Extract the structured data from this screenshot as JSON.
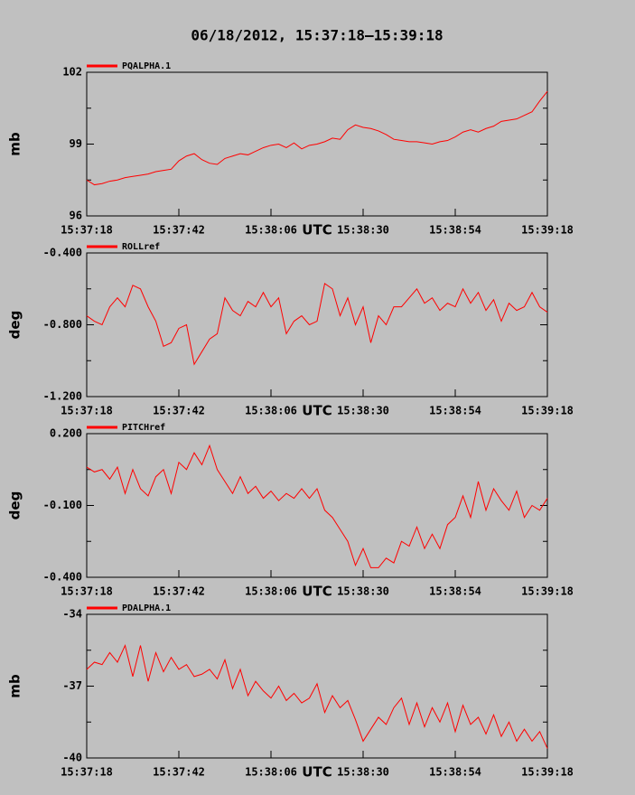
{
  "title": "06/18/2012, 15:37:18–15:39:18",
  "chart_data": [
    {
      "type": "line",
      "ylabel": "mb",
      "xlabel": "UTC",
      "x": [
        0,
        2,
        4,
        6,
        8,
        10,
        12,
        14,
        16,
        18,
        20,
        22,
        24,
        26,
        28,
        30,
        32,
        34,
        36,
        38,
        40,
        42,
        44,
        46,
        48,
        50,
        52,
        54,
        56,
        58,
        60,
        62,
        64,
        66,
        68,
        70,
        72,
        74,
        76,
        78,
        80,
        82,
        84,
        86,
        88,
        90,
        92,
        94,
        96,
        98,
        100,
        102,
        104,
        106,
        108,
        110,
        112,
        114,
        116,
        118,
        120
      ],
      "xlim": [
        0,
        120
      ],
      "xticks": [
        {
          "value": 0,
          "label": "15:37:18"
        },
        {
          "value": 24,
          "label": "15:37:42"
        },
        {
          "value": 48,
          "label": "15:38:06"
        },
        {
          "value": 72,
          "label": "15:38:30"
        },
        {
          "value": 96,
          "label": "15:38:54"
        },
        {
          "value": 120,
          "label": "15:39:18"
        }
      ],
      "ylim": [
        96,
        102
      ],
      "yticks": [
        96,
        99,
        102
      ],
      "yminor": [
        97.5,
        100.5
      ],
      "series": [
        {
          "name": "PQALPHA.1",
          "color": "#ff0000",
          "values": [
            97.5,
            97.3,
            97.35,
            97.45,
            97.5,
            97.6,
            97.65,
            97.7,
            97.75,
            97.85,
            97.9,
            97.95,
            98.3,
            98.5,
            98.6,
            98.35,
            98.2,
            98.15,
            98.4,
            98.5,
            98.6,
            98.55,
            98.7,
            98.85,
            98.95,
            99.0,
            98.85,
            99.05,
            98.8,
            98.95,
            99.0,
            99.1,
            99.25,
            99.2,
            99.6,
            99.8,
            99.7,
            99.65,
            99.55,
            99.4,
            99.2,
            99.15,
            99.1,
            99.1,
            99.05,
            99.0,
            99.1,
            99.15,
            99.3,
            99.5,
            99.6,
            99.5,
            99.65,
            99.75,
            99.95,
            100.0,
            100.05,
            100.2,
            100.35,
            100.8,
            101.2
          ]
        }
      ]
    },
    {
      "type": "line",
      "ylabel": "deg",
      "xlabel": "UTC",
      "x": [
        0,
        2,
        4,
        6,
        8,
        10,
        12,
        14,
        16,
        18,
        20,
        22,
        24,
        26,
        28,
        30,
        32,
        34,
        36,
        38,
        40,
        42,
        44,
        46,
        48,
        50,
        52,
        54,
        56,
        58,
        60,
        62,
        64,
        66,
        68,
        70,
        72,
        74,
        76,
        78,
        80,
        82,
        84,
        86,
        88,
        90,
        92,
        94,
        96,
        98,
        100,
        102,
        104,
        106,
        108,
        110,
        112,
        114,
        116,
        118,
        120
      ],
      "xlim": [
        0,
        120
      ],
      "xticks": [
        {
          "value": 0,
          "label": "15:37:18"
        },
        {
          "value": 24,
          "label": "15:37:42"
        },
        {
          "value": 48,
          "label": "15:38:06"
        },
        {
          "value": 72,
          "label": "15:38:30"
        },
        {
          "value": 96,
          "label": "15:38:54"
        },
        {
          "value": 120,
          "label": "15:39:18"
        }
      ],
      "ylim": [
        -1.2,
        -0.4
      ],
      "yticks": [
        {
          "value": -1.2,
          "label": "-1.200"
        },
        {
          "value": -0.8,
          "label": "-0.800"
        },
        {
          "value": -0.4,
          "label": "-0.400"
        }
      ],
      "yminor": [
        -1.0,
        -0.6
      ],
      "series": [
        {
          "name": "ROLLref",
          "color": "#ff0000",
          "values": [
            -0.75,
            -0.78,
            -0.8,
            -0.7,
            -0.65,
            -0.7,
            -0.58,
            -0.6,
            -0.7,
            -0.78,
            -0.92,
            -0.9,
            -0.82,
            -0.8,
            -1.02,
            -0.95,
            -0.88,
            -0.85,
            -0.65,
            -0.72,
            -0.75,
            -0.67,
            -0.7,
            -0.62,
            -0.7,
            -0.65,
            -0.85,
            -0.78,
            -0.75,
            -0.8,
            -0.78,
            -0.57,
            -0.6,
            -0.75,
            -0.65,
            -0.8,
            -0.7,
            -0.9,
            -0.75,
            -0.8,
            -0.7,
            -0.7,
            -0.65,
            -0.6,
            -0.68,
            -0.65,
            -0.72,
            -0.68,
            -0.7,
            -0.6,
            -0.68,
            -0.62,
            -0.72,
            -0.66,
            -0.78,
            -0.68,
            -0.72,
            -0.7,
            -0.62,
            -0.7,
            -0.73
          ]
        }
      ]
    },
    {
      "type": "line",
      "ylabel": "deg",
      "xlabel": "UTC",
      "x": [
        0,
        2,
        4,
        6,
        8,
        10,
        12,
        14,
        16,
        18,
        20,
        22,
        24,
        26,
        28,
        30,
        32,
        34,
        36,
        38,
        40,
        42,
        44,
        46,
        48,
        50,
        52,
        54,
        56,
        58,
        60,
        62,
        64,
        66,
        68,
        70,
        72,
        74,
        76,
        78,
        80,
        82,
        84,
        86,
        88,
        90,
        92,
        94,
        96,
        98,
        100,
        102,
        104,
        106,
        108,
        110,
        112,
        114,
        116,
        118,
        120
      ],
      "xlim": [
        0,
        120
      ],
      "xticks": [
        {
          "value": 0,
          "label": "15:37:18"
        },
        {
          "value": 24,
          "label": "15:37:42"
        },
        {
          "value": 48,
          "label": "15:38:06"
        },
        {
          "value": 72,
          "label": "15:38:30"
        },
        {
          "value": 96,
          "label": "15:38:54"
        },
        {
          "value": 120,
          "label": "15:39:18"
        }
      ],
      "ylim": [
        -0.4,
        0.2
      ],
      "yticks": [
        {
          "value": -0.4,
          "label": "-0.400"
        },
        {
          "value": -0.1,
          "label": "-0.100"
        },
        {
          "value": 0.2,
          "label": "0.200"
        }
      ],
      "yminor": [
        -0.25,
        0.05
      ],
      "series": [
        {
          "name": "PITCHref",
          "color": "#ff0000",
          "values": [
            0.06,
            0.04,
            0.05,
            0.01,
            0.06,
            -0.05,
            0.05,
            -0.03,
            -0.06,
            0.02,
            0.05,
            -0.05,
            0.08,
            0.05,
            0.12,
            0.07,
            0.15,
            0.05,
            0.0,
            -0.05,
            0.02,
            -0.05,
            -0.02,
            -0.07,
            -0.04,
            -0.08,
            -0.05,
            -0.07,
            -0.03,
            -0.07,
            -0.03,
            -0.12,
            -0.15,
            -0.2,
            -0.25,
            -0.35,
            -0.28,
            -0.36,
            -0.36,
            -0.32,
            -0.34,
            -0.25,
            -0.27,
            -0.19,
            -0.28,
            -0.22,
            -0.28,
            -0.18,
            -0.15,
            -0.06,
            -0.15,
            0.0,
            -0.12,
            -0.03,
            -0.08,
            -0.12,
            -0.04,
            -0.15,
            -0.1,
            -0.12,
            -0.07
          ]
        }
      ]
    },
    {
      "type": "line",
      "ylabel": "mb",
      "xlabel": "UTC",
      "x": [
        0,
        2,
        4,
        6,
        8,
        10,
        12,
        14,
        16,
        18,
        20,
        22,
        24,
        26,
        28,
        30,
        32,
        34,
        36,
        38,
        40,
        42,
        44,
        46,
        48,
        50,
        52,
        54,
        56,
        58,
        60,
        62,
        64,
        66,
        68,
        70,
        72,
        74,
        76,
        78,
        80,
        82,
        84,
        86,
        88,
        90,
        92,
        94,
        96,
        98,
        100,
        102,
        104,
        106,
        108,
        110,
        112,
        114,
        116,
        118,
        120
      ],
      "xlim": [
        0,
        120
      ],
      "xticks": [
        {
          "value": 0,
          "label": "15:37:18"
        },
        {
          "value": 24,
          "label": "15:37:42"
        },
        {
          "value": 48,
          "label": "15:38:06"
        },
        {
          "value": 72,
          "label": "15:38:30"
        },
        {
          "value": 96,
          "label": "15:38:54"
        },
        {
          "value": 120,
          "label": "15:39:18"
        }
      ],
      "ylim": [
        -40,
        -34
      ],
      "yticks": [
        -40,
        -37,
        -34
      ],
      "yminor": [
        -38.5,
        -35.5
      ],
      "series": [
        {
          "name": "PDALPHA.1",
          "color": "#ff0000",
          "values": [
            -36.3,
            -36.0,
            -36.1,
            -35.6,
            -36.0,
            -35.3,
            -36.6,
            -35.3,
            -36.8,
            -35.6,
            -36.4,
            -35.8,
            -36.3,
            -36.1,
            -36.6,
            -36.5,
            -36.3,
            -36.7,
            -35.9,
            -37.1,
            -36.3,
            -37.4,
            -36.8,
            -37.2,
            -37.5,
            -37.0,
            -37.6,
            -37.3,
            -37.7,
            -37.5,
            -36.9,
            -38.1,
            -37.4,
            -37.9,
            -37.6,
            -38.4,
            -39.3,
            -38.8,
            -38.3,
            -38.6,
            -37.9,
            -37.5,
            -38.6,
            -37.7,
            -38.7,
            -37.9,
            -38.5,
            -37.7,
            -38.9,
            -37.8,
            -38.6,
            -38.3,
            -39.0,
            -38.2,
            -39.1,
            -38.5,
            -39.3,
            -38.8,
            -39.3,
            -38.9,
            -39.6
          ]
        }
      ]
    }
  ]
}
